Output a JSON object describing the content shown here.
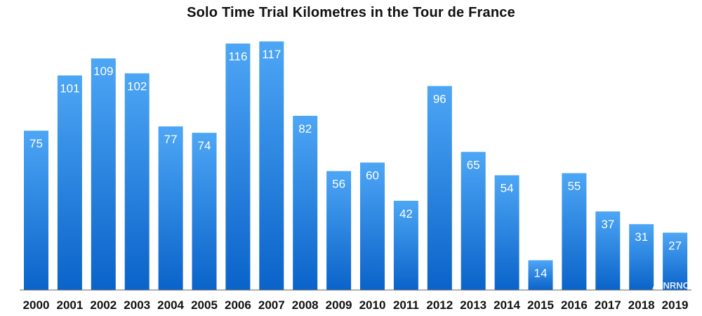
{
  "watermark": "NRNC",
  "chart_data": {
    "type": "bar",
    "title": "Solo Time Trial Kilometres in the Tour de France",
    "xlabel": "",
    "ylabel": "",
    "categories": [
      "2000",
      "2001",
      "2002",
      "2003",
      "2004",
      "2005",
      "2006",
      "2007",
      "2008",
      "2009",
      "2010",
      "2011",
      "2012",
      "2013",
      "2014",
      "2015",
      "2016",
      "2017",
      "2018",
      "2019"
    ],
    "values": [
      75,
      101,
      109,
      102,
      77,
      74,
      116,
      117,
      82,
      56,
      60,
      42,
      96,
      65,
      54,
      14,
      55,
      37,
      31,
      27
    ],
    "ylim": [
      0,
      117
    ],
    "grid": false,
    "bar_color_top": "#4da6f5",
    "bar_color_bottom": "#0a63c9"
  }
}
